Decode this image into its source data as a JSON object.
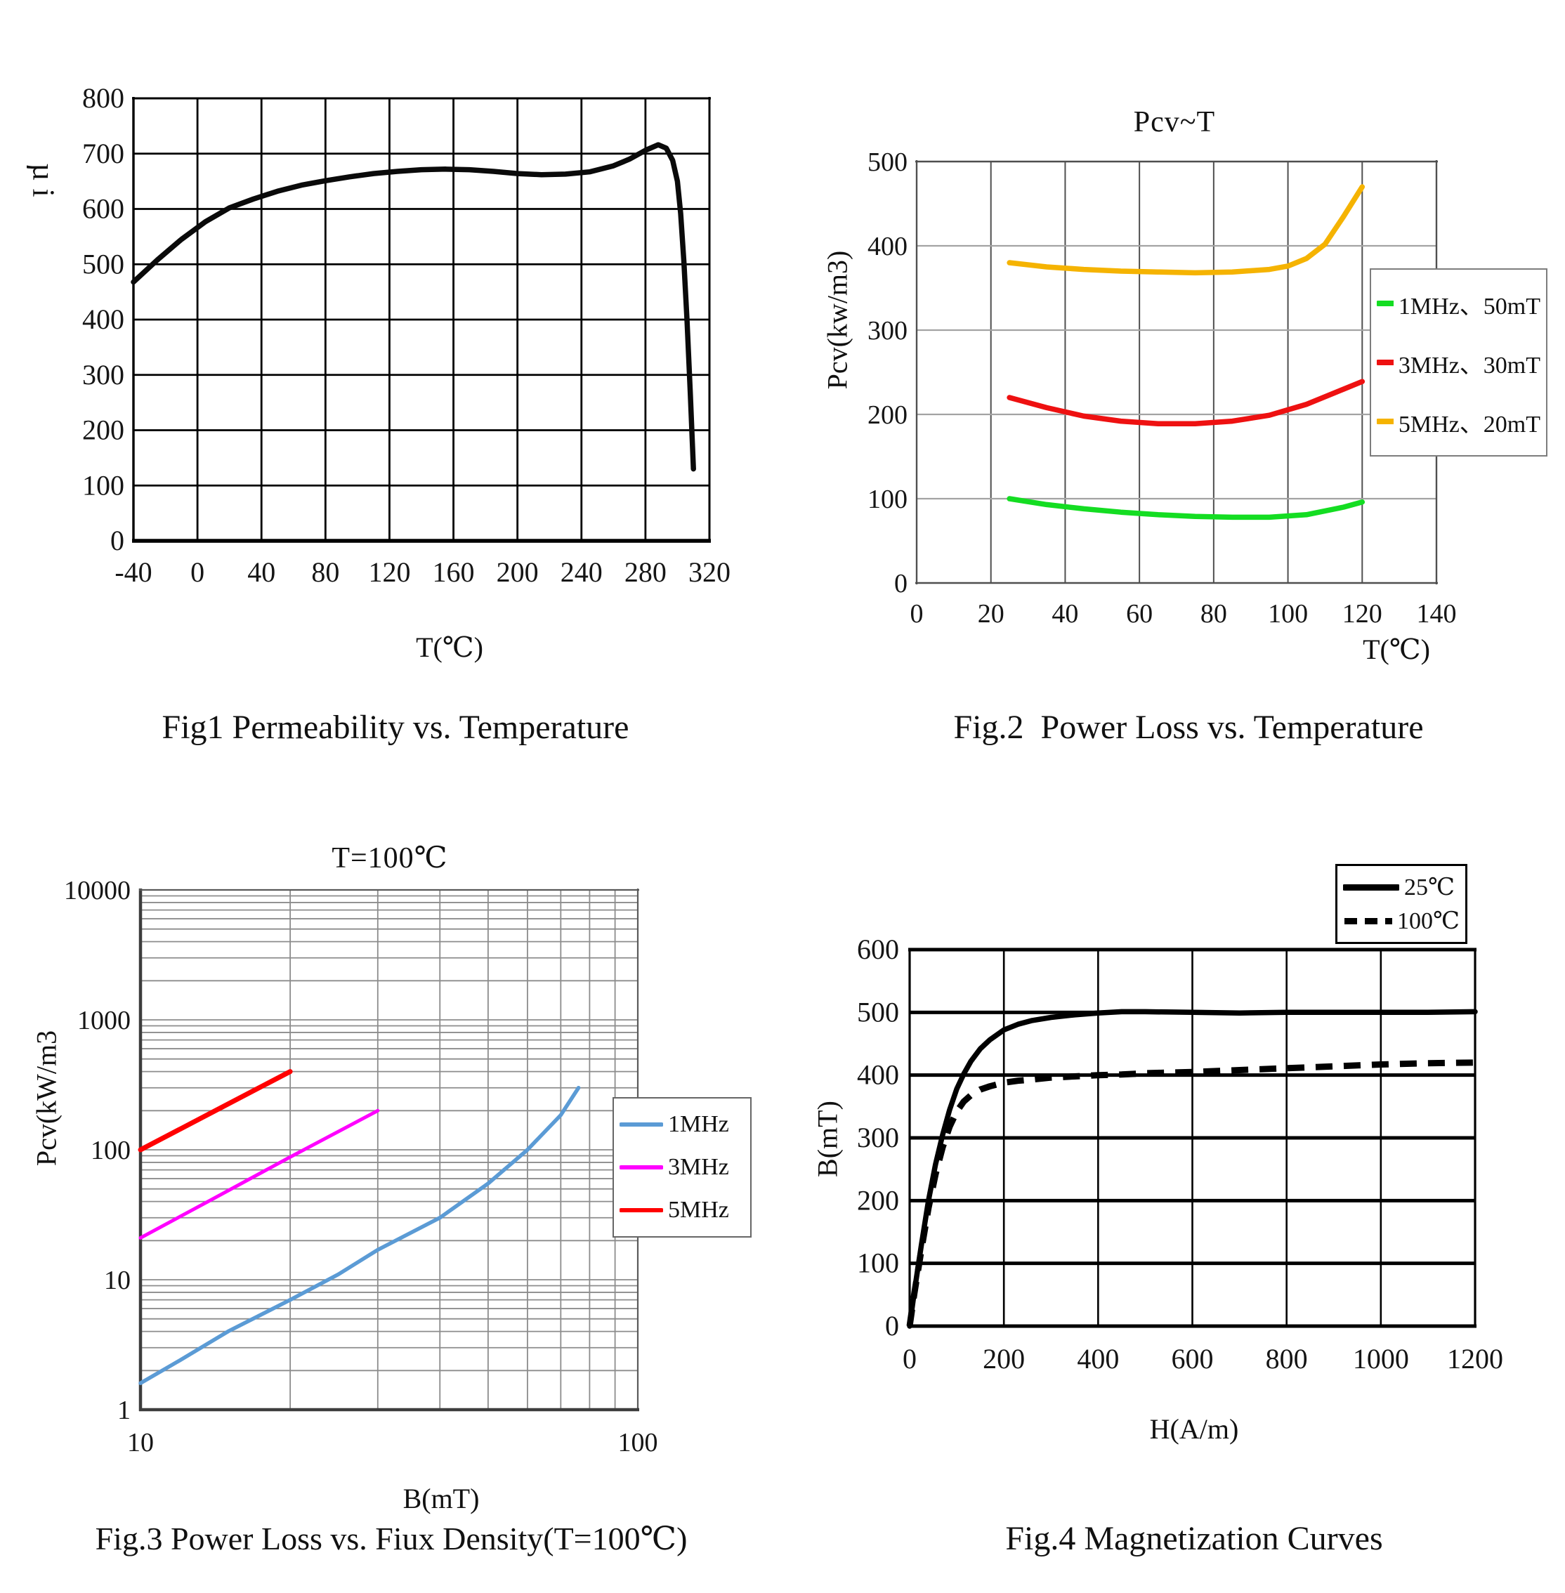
{
  "page": {
    "background": "#ffffff",
    "text_color": "#111111"
  },
  "chart_data": [
    {
      "id": "fig1",
      "type": "line",
      "title": "",
      "caption": "Fig1 Permeability vs. Temperature",
      "xlabel": "T(℃)",
      "ylabel": "µ i",
      "xscale": "linear",
      "yscale": "linear",
      "xlim": [
        -40,
        320
      ],
      "ylim": [
        0,
        800
      ],
      "xticks": [
        -40,
        0,
        40,
        80,
        120,
        160,
        200,
        240,
        280,
        320
      ],
      "yticks": [
        0,
        100,
        200,
        300,
        400,
        500,
        600,
        700,
        800
      ],
      "grid": "on",
      "legend_position": null,
      "series": [
        {
          "name": "µi",
          "color": "#0a0a0a",
          "line_style": "solid",
          "x": [
            -40,
            -25,
            -10,
            5,
            20,
            35,
            50,
            65,
            80,
            95,
            110,
            125,
            140,
            155,
            170,
            185,
            200,
            215,
            230,
            245,
            260,
            270,
            280,
            288,
            293,
            297,
            300,
            302,
            304,
            306,
            308,
            310
          ],
          "y": [
            468,
            508,
            545,
            577,
            602,
            618,
            632,
            643,
            651,
            658,
            664,
            668,
            671,
            672,
            671,
            668,
            664,
            662,
            663,
            667,
            678,
            690,
            706,
            716,
            710,
            688,
            650,
            592,
            505,
            398,
            268,
            130
          ]
        }
      ]
    },
    {
      "id": "fig2",
      "type": "line",
      "title": "Pcv~T",
      "caption": "Fig.2  Power Loss vs. Temperature",
      "xlabel": "T(℃)",
      "ylabel": "Pcv(kw/m3)",
      "xscale": "linear",
      "yscale": "linear",
      "xlim": [
        0,
        140
      ],
      "ylim": [
        0,
        500
      ],
      "xticks": [
        0,
        20,
        40,
        60,
        80,
        100,
        120,
        140
      ],
      "yticks": [
        0,
        100,
        200,
        300,
        400,
        500
      ],
      "grid": "on",
      "legend_position": "right",
      "series": [
        {
          "name": "1MHz、50mT",
          "color": "#14dd22",
          "line_style": "solid",
          "x": [
            25,
            35,
            45,
            55,
            65,
            75,
            85,
            95,
            105,
            115,
            120
          ],
          "y": [
            100,
            93,
            88,
            84,
            81,
            79,
            78,
            78,
            81,
            90,
            96
          ]
        },
        {
          "name": "3MHz、30mT",
          "color": "#ee1111",
          "line_style": "solid",
          "x": [
            25,
            35,
            45,
            55,
            65,
            75,
            85,
            95,
            105,
            115,
            120
          ],
          "y": [
            220,
            208,
            198,
            192,
            189,
            189,
            192,
            199,
            212,
            230,
            239
          ]
        },
        {
          "name": "5MHz、20mT",
          "color": "#f5b301",
          "line_style": "solid",
          "x": [
            25,
            35,
            45,
            55,
            65,
            75,
            85,
            95,
            100,
            105,
            110,
            115,
            120
          ],
          "y": [
            380,
            375,
            372,
            370,
            369,
            368,
            369,
            372,
            376,
            385,
            402,
            435,
            470
          ]
        }
      ]
    },
    {
      "id": "fig3",
      "type": "line",
      "title": "T=100℃",
      "caption": "Fig.3 Power Loss vs. Fiux Density(T=100℃)",
      "xlabel": "B(mT)",
      "ylabel": "Pcv(kW/m3",
      "xscale": "log",
      "yscale": "log",
      "xlim": [
        10,
        100
      ],
      "ylim": [
        1,
        10000
      ],
      "xticks": [
        10,
        100
      ],
      "yticks": [
        1,
        10,
        100,
        1000,
        10000
      ],
      "grid": "on",
      "legend_position": "right",
      "series": [
        {
          "name": "1MHz",
          "color": "#5b9bd5",
          "line_style": "solid",
          "x": [
            10,
            12,
            15,
            20,
            25,
            30,
            40,
            50,
            60,
            70,
            76
          ],
          "y": [
            1.6,
            2.4,
            4.0,
            7.0,
            11,
            17,
            30,
            55,
            100,
            185,
            300
          ]
        },
        {
          "name": "3MHz",
          "color": "#ff00ff",
          "line_style": "solid",
          "x": [
            10,
            14,
            20,
            30
          ],
          "y": [
            21,
            42,
            88,
            200
          ]
        },
        {
          "name": "5MHz",
          "color": "#ff0000",
          "line_style": "solid",
          "x": [
            10,
            14,
            20
          ],
          "y": [
            100,
            196,
            400
          ]
        }
      ]
    },
    {
      "id": "fig4",
      "type": "line",
      "title": "",
      "caption": "Fig.4 Magnetization Curves",
      "xlabel": "H(A/m)",
      "ylabel": "B(mT)",
      "xscale": "linear",
      "yscale": "linear",
      "xlim": [
        0,
        1200
      ],
      "ylim": [
        0,
        600
      ],
      "xticks": [
        0,
        200,
        400,
        600,
        800,
        1000,
        1200
      ],
      "yticks": [
        0,
        100,
        200,
        300,
        400,
        500,
        600
      ],
      "grid": "on",
      "legend_position": "top-right",
      "series": [
        {
          "name": "25℃",
          "color": "#000000",
          "line_style": "solid",
          "x": [
            0,
            10,
            25,
            40,
            55,
            70,
            85,
            100,
            115,
            130,
            150,
            170,
            200,
            230,
            260,
            300,
            350,
            400,
            450,
            500,
            600,
            700,
            800,
            900,
            1000,
            1100,
            1200
          ],
          "y": [
            0,
            55,
            130,
            200,
            258,
            305,
            345,
            378,
            402,
            422,
            442,
            456,
            472,
            481,
            487,
            492,
            496,
            499,
            501,
            501,
            500,
            499,
            500,
            500,
            500,
            500,
            501
          ]
        },
        {
          "name": "100℃",
          "color": "#000000",
          "line_style": "dashed",
          "x": [
            0,
            10,
            25,
            40,
            55,
            70,
            85,
            100,
            115,
            130,
            150,
            170,
            200,
            230,
            260,
            300,
            350,
            400,
            450,
            500,
            600,
            700,
            800,
            900,
            1000,
            1100,
            1200
          ],
          "y": [
            0,
            52,
            122,
            188,
            242,
            285,
            318,
            342,
            358,
            368,
            377,
            382,
            388,
            391,
            393,
            396,
            398,
            400,
            401,
            403,
            405,
            408,
            411,
            414,
            417,
            419,
            420
          ]
        }
      ]
    }
  ]
}
